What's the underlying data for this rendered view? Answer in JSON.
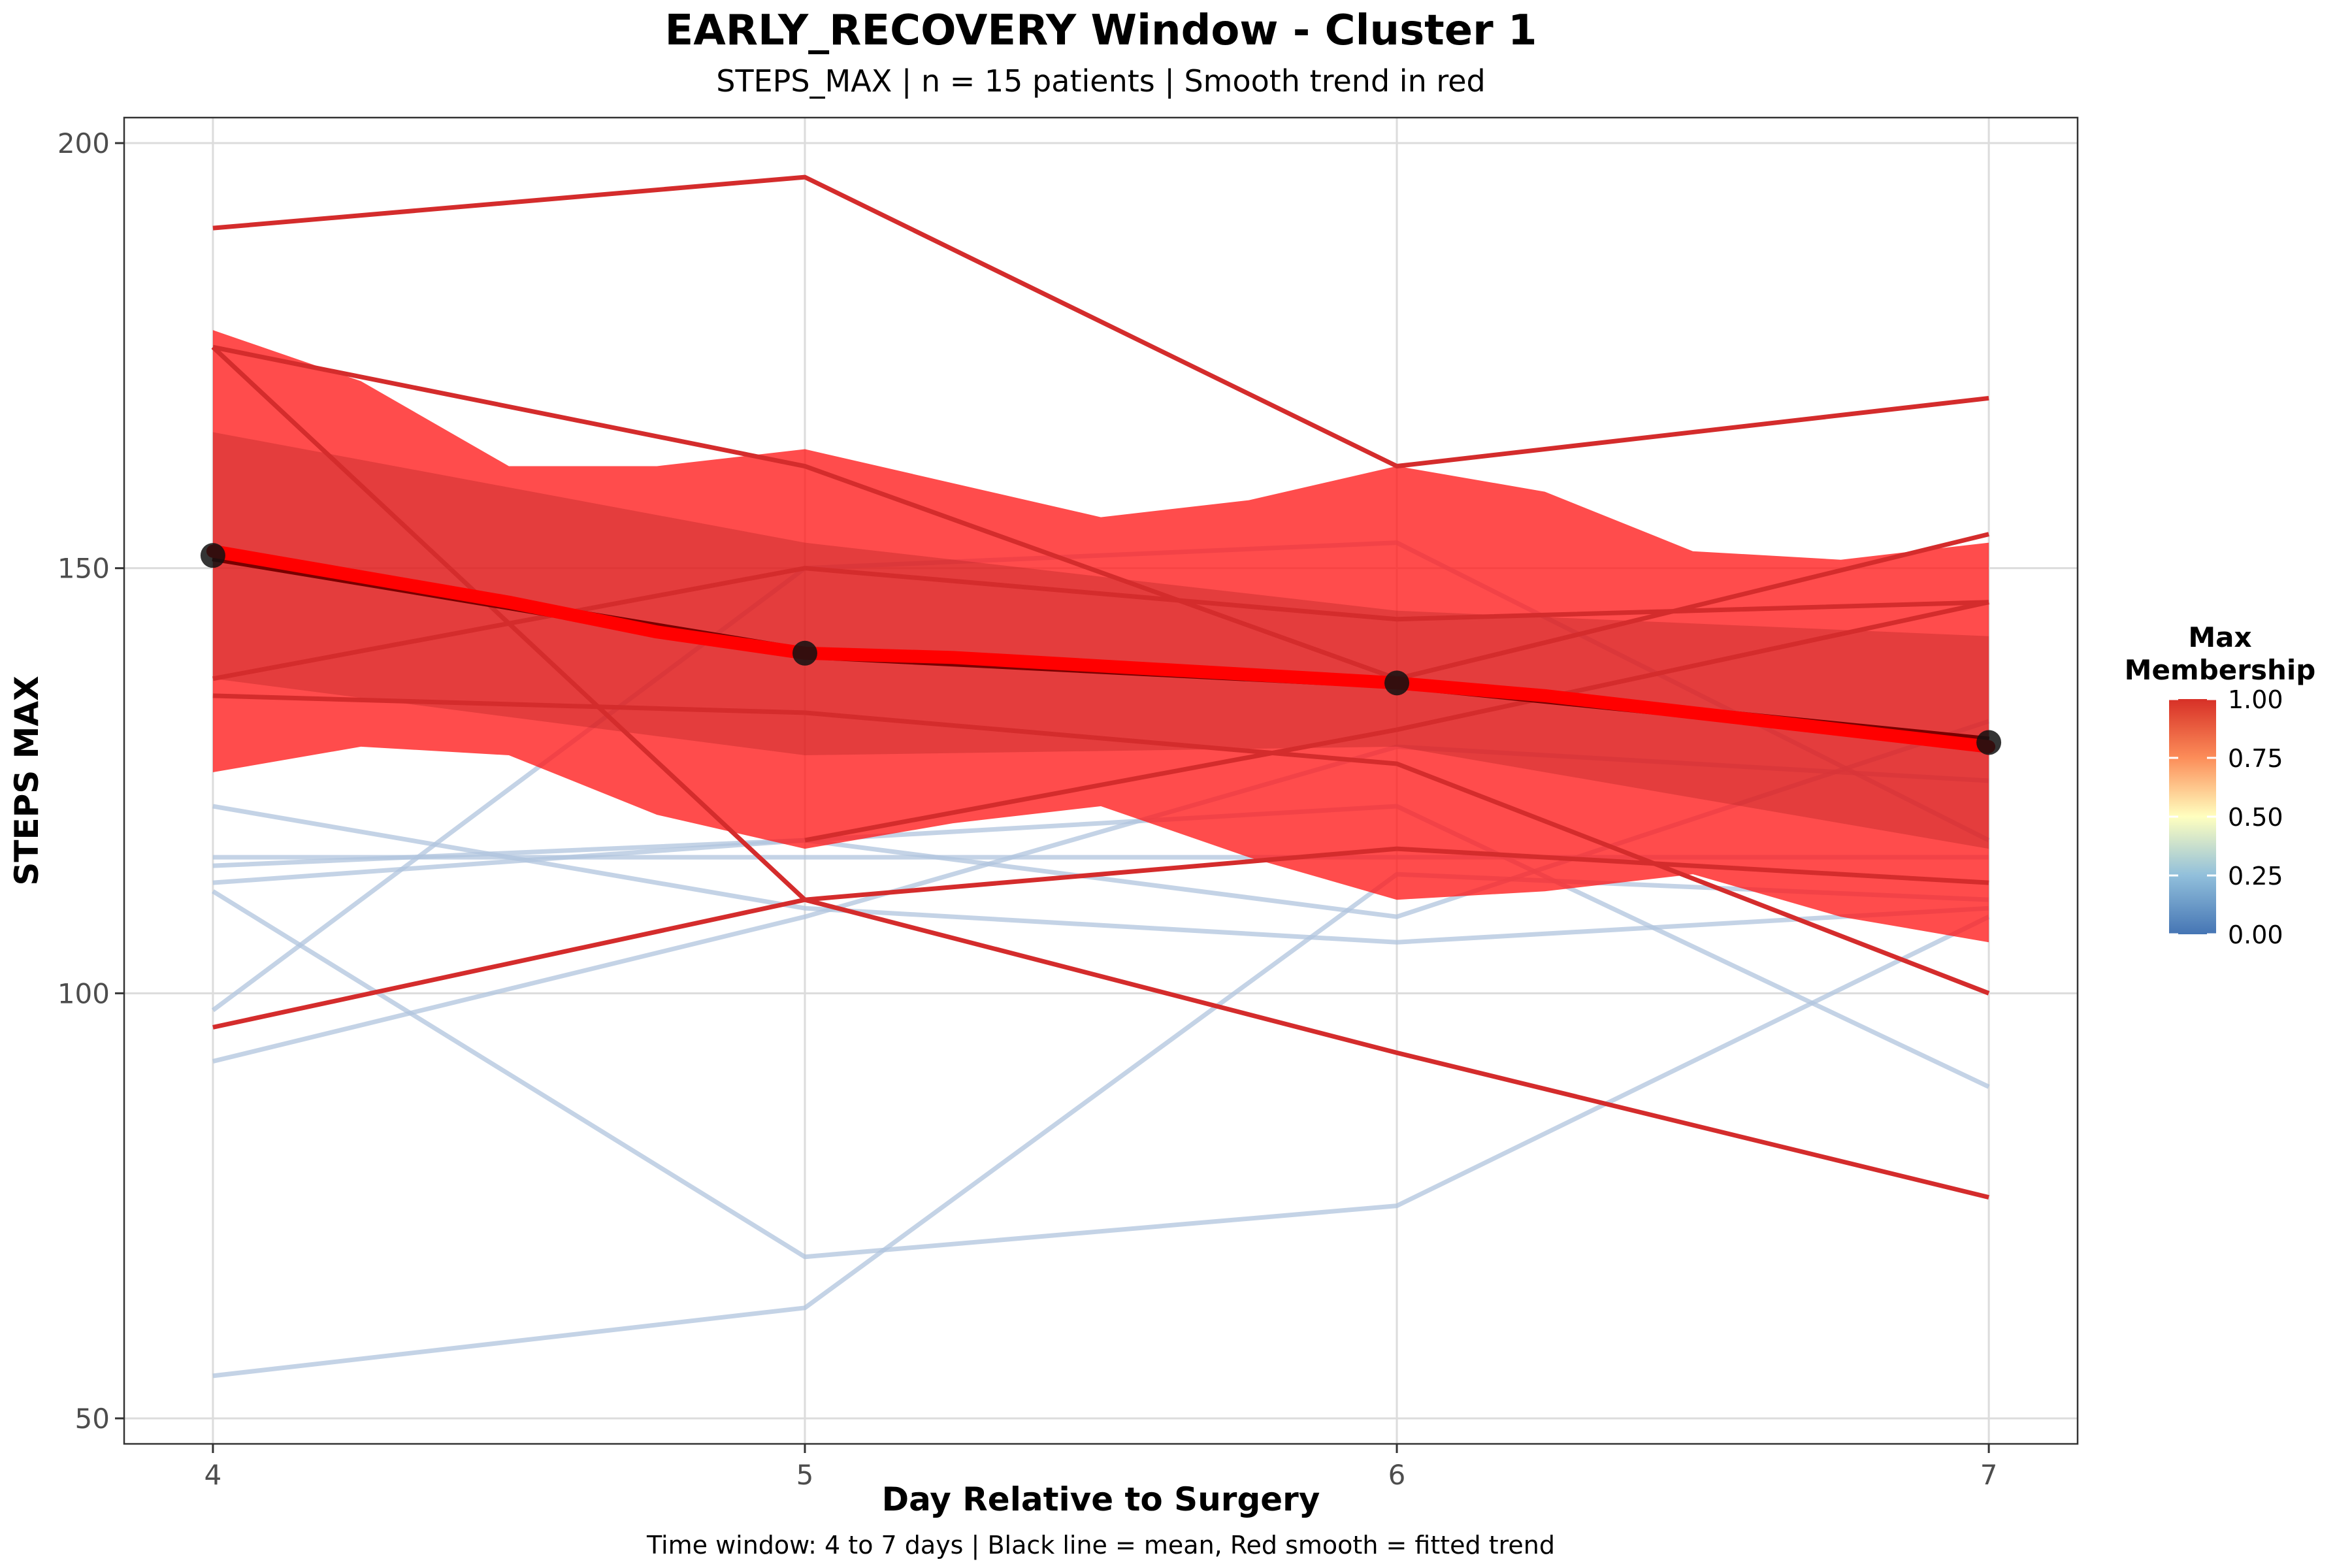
{
  "chart_data": {
    "type": "line",
    "title": "EARLY_RECOVERY Window - Cluster 1",
    "subtitle": "STEPS_MAX | n = 15 patients | Smooth trend in red",
    "xlabel": "Day Relative to Surgery",
    "ylabel": "STEPS MAX",
    "caption": "Time window: 4 to 7 days | Black line = mean, Red smooth = fitted trend",
    "x": [
      4,
      5,
      6,
      7
    ],
    "xlim": [
      3.85,
      7.15
    ],
    "ylim": [
      47,
      203
    ],
    "x_ticks": [
      "4",
      "5",
      "6",
      "7"
    ],
    "y_ticks": [
      "50",
      "100",
      "150",
      "200"
    ],
    "y_tick_values": [
      50,
      100,
      150,
      200
    ],
    "grid": true,
    "legend": {
      "title_line1": "Max",
      "title_line2": "Membership",
      "placement": "right",
      "ticks": [
        "1.00",
        "0.75",
        "0.50",
        "0.25",
        "0.00"
      ],
      "tick_values": [
        1.0,
        0.75,
        0.5,
        0.25,
        0.0
      ],
      "gradient_colors": [
        "#4575b4",
        "#91bfdb",
        "#ffffbf",
        "#fc8d59",
        "#d73027"
      ]
    },
    "colors": {
      "low_membership": "#b0c4de",
      "high_membership": "#d42c2c",
      "smooth_trend": "#ff0000",
      "ribbon": "#ff1a1a",
      "inner_ribbon": "#b22222",
      "mean": "#000000"
    },
    "series": [
      {
        "membership": 1.0,
        "x": [
          4,
          5,
          6,
          7
        ],
        "values": [
          190,
          196,
          162,
          170
        ]
      },
      {
        "membership": 1.0,
        "x": [
          4,
          5,
          6,
          7
        ],
        "values": [
          176,
          162,
          137,
          154
        ]
      },
      {
        "membership": 1.0,
        "x": [
          4,
          5,
          6,
          7
        ],
        "values": [
          176,
          111,
          93,
          76
        ]
      },
      {
        "membership": 1.0,
        "x": [
          4,
          5,
          6,
          7
        ],
        "values": [
          137,
          150,
          144,
          146
        ]
      },
      {
        "membership": 1.0,
        "x": [
          4,
          5,
          6,
          7
        ],
        "values": [
          135,
          133,
          127,
          100
        ]
      },
      {
        "membership": 1.0,
        "x": [
          4,
          5,
          6,
          7
        ],
        "values": [
          96,
          111,
          117,
          113
        ]
      },
      {
        "membership": 1.0,
        "x": [
          5,
          6,
          7
        ],
        "values": [
          118,
          131,
          146
        ]
      },
      {
        "membership": 0.0,
        "x": [
          4,
          5,
          6,
          7
        ],
        "values": [
          98,
          150,
          153,
          118
        ]
      },
      {
        "membership": 0.0,
        "x": [
          4,
          5,
          6,
          7
        ],
        "values": [
          92,
          109,
          129,
          125
        ]
      },
      {
        "membership": 0.0,
        "x": [
          4,
          5,
          6,
          7
        ],
        "values": [
          122,
          110,
          106,
          110
        ]
      },
      {
        "membership": 0.0,
        "x": [
          4,
          5,
          6,
          7
        ],
        "values": [
          116,
          116,
          116,
          116
        ]
      },
      {
        "membership": 0.0,
        "x": [
          4,
          5,
          6,
          7
        ],
        "values": [
          115,
          118,
          122,
          89
        ]
      },
      {
        "membership": 0.0,
        "x": [
          4,
          5,
          6,
          7
        ],
        "values": [
          113,
          118,
          109,
          132
        ]
      },
      {
        "membership": 0.0,
        "x": [
          4,
          5,
          6,
          7
        ],
        "values": [
          112,
          69,
          75,
          109
        ]
      },
      {
        "membership": 0.0,
        "x": [
          4,
          5,
          6,
          7
        ],
        "values": [
          55,
          63,
          114,
          111
        ]
      }
    ],
    "ribbon": {
      "x": [
        4,
        4.25,
        4.5,
        4.75,
        5,
        5.25,
        5.5,
        5.75,
        6,
        6.25,
        6.5,
        6.75,
        7
      ],
      "upper": [
        178,
        172,
        162,
        162,
        164,
        160,
        156,
        158,
        162,
        159,
        152,
        151,
        153
      ],
      "lower": [
        126,
        129,
        128,
        121,
        117,
        120,
        122,
        116,
        111,
        112,
        114,
        109,
        106
      ]
    },
    "inner_ribbon": {
      "x": [
        4,
        5,
        6,
        7
      ],
      "upper": [
        166,
        153,
        145,
        142
      ],
      "lower": [
        137,
        128,
        129,
        117
      ]
    },
    "mean_line": {
      "x": [
        4,
        5,
        6,
        7
      ],
      "values": [
        151.5,
        140,
        136.5,
        129.5
      ]
    },
    "smooth_trend": {
      "x": [
        4,
        4.25,
        4.5,
        4.75,
        5,
        5.25,
        5.5,
        5.75,
        6,
        6.25,
        6.5,
        6.75,
        7
      ],
      "values": [
        152,
        149,
        146,
        142.5,
        140,
        139.5,
        138.5,
        137.5,
        136.5,
        135,
        133,
        131,
        129
      ]
    }
  }
}
